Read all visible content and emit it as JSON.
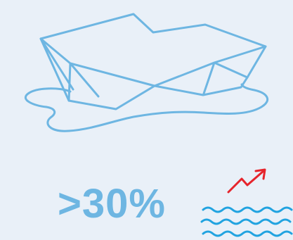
{
  "stat": {
    "value": ">30%",
    "color": "#6eb6e2"
  },
  "illustration": {
    "icon": "melting-iceberg-icon",
    "line_color": "#6eb6e2"
  },
  "trend": {
    "icon": "rising-trend-arrow-icon",
    "arrow_color": "#e6242c",
    "wave_icon": "sea-level-waves-icon",
    "wave_color": "#21a3e0"
  }
}
